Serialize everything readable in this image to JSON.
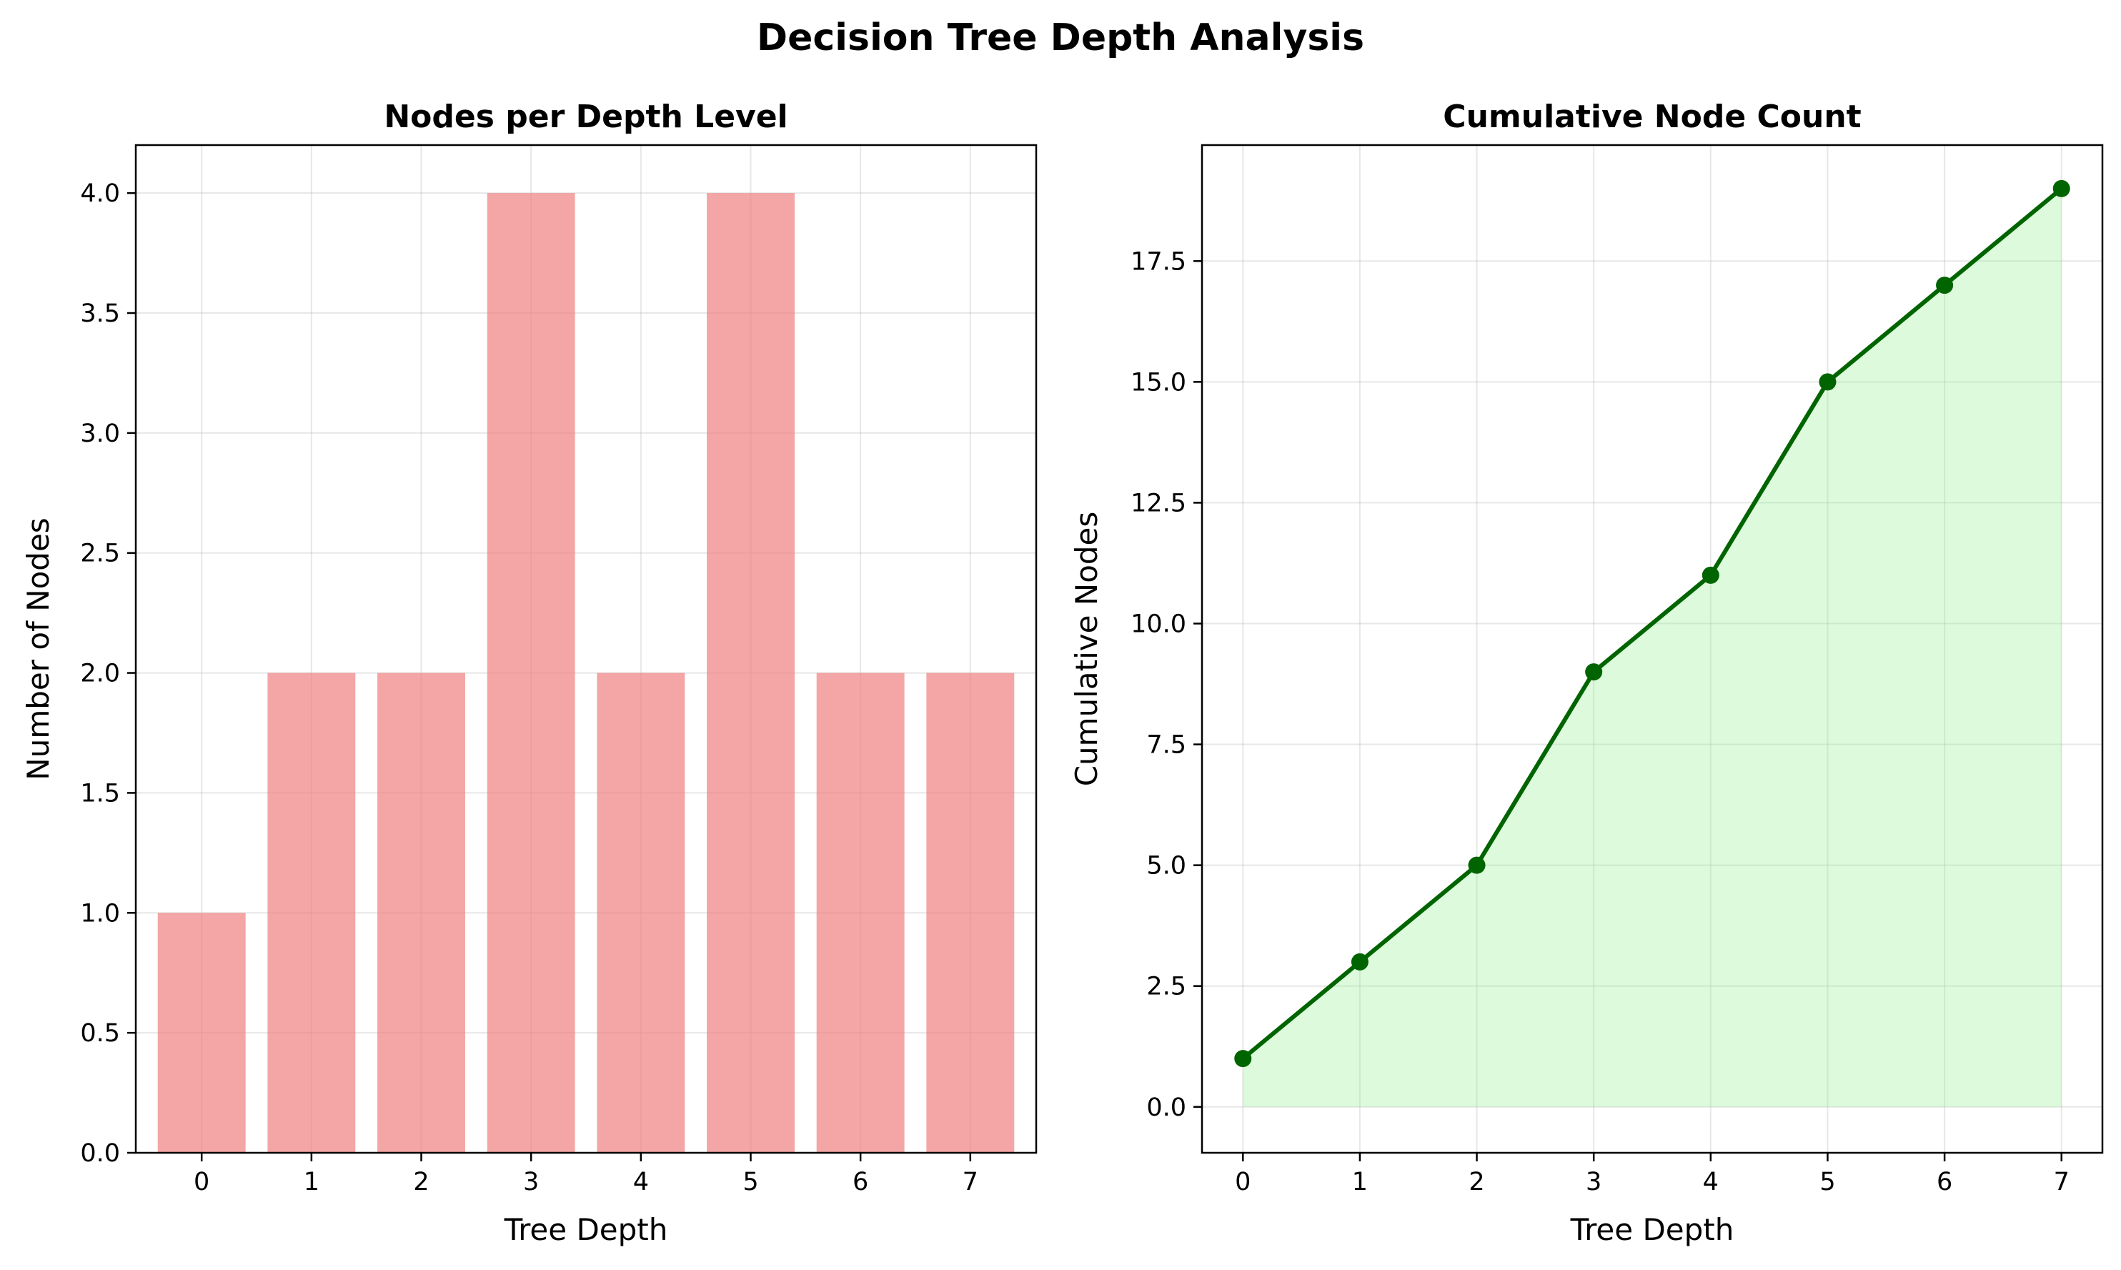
{
  "figure": {
    "title": "Decision Tree Depth Analysis"
  },
  "chart_data": [
    {
      "type": "bar",
      "title": "Nodes per Depth Level",
      "xlabel": "Tree Depth",
      "ylabel": "Number of Nodes",
      "categories": [
        "0",
        "1",
        "2",
        "3",
        "4",
        "5",
        "6",
        "7"
      ],
      "values": [
        1,
        2,
        2,
        4,
        2,
        4,
        2,
        2
      ],
      "ylim": [
        0,
        4.2
      ],
      "xlim": [
        -0.6,
        7.6
      ],
      "yticks": [
        0.0,
        0.5,
        1.0,
        1.5,
        2.0,
        2.5,
        3.0,
        3.5,
        4.0
      ],
      "ytick_labels": [
        "0.0",
        "0.5",
        "1.0",
        "1.5",
        "2.0",
        "2.5",
        "3.0",
        "3.5",
        "4.0"
      ],
      "grid": true,
      "bar_color": "#f08080"
    },
    {
      "type": "area",
      "title": "Cumulative Node Count",
      "xlabel": "Tree Depth",
      "ylabel": "Cumulative Nodes",
      "x": [
        0,
        1,
        2,
        3,
        4,
        5,
        6,
        7
      ],
      "xtick_labels": [
        "0",
        "1",
        "2",
        "3",
        "4",
        "5",
        "6",
        "7"
      ],
      "values": [
        1,
        3,
        5,
        9,
        11,
        15,
        17,
        19
      ],
      "ylim": [
        -0.95,
        19.9
      ],
      "xlim": [
        -0.35,
        7.35
      ],
      "yticks": [
        0.0,
        2.5,
        5.0,
        7.5,
        10.0,
        12.5,
        15.0,
        17.5
      ],
      "ytick_labels": [
        "0.0",
        "2.5",
        "5.0",
        "7.5",
        "10.0",
        "12.5",
        "15.0",
        "17.5"
      ],
      "grid": true,
      "line_color": "#006400",
      "fill_color": "#90ee90"
    }
  ]
}
